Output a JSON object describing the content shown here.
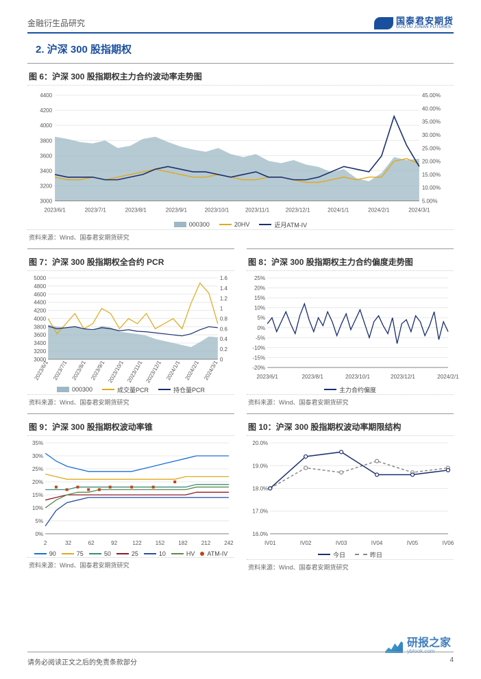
{
  "header": {
    "category": "金融衍生品研究",
    "logo_cn": "国泰君安期货",
    "logo_en": "GUOTAI JUNAN FUTURES"
  },
  "section": {
    "number": "2.",
    "title": "沪深 300 股指期权"
  },
  "colors": {
    "brand": "#1a4f9e",
    "area_fill": "#9db8c4",
    "line_yellow": "#e0a81a",
    "line_navy": "#1a2f6e",
    "line_blue_90": "#1a6fd8",
    "line_blue_75": "#e0a81a",
    "line_blue_50": "#3a8a7a",
    "line_blue_25": "#8a1a2a",
    "line_blue_10": "#2a4f9e",
    "line_hv": "#5a8a4a",
    "line_atmiv": "#b84a1a",
    "grid": "#e8e8e8",
    "axis": "#888888",
    "bg": "#ffffff"
  },
  "fig6": {
    "title": "图 6：沪深 300 股指期权主力合约波动率走势图",
    "x_labels": [
      "2023/6/1",
      "2023/7/1",
      "2023/8/1",
      "2023/9/1",
      "2023/10/1",
      "2023/11/1",
      "2023/12/1",
      "2024/1/1",
      "2024/2/1",
      "2024/3/1"
    ],
    "y_left_ticks": [
      3000,
      3200,
      3400,
      3600,
      3800,
      4000,
      4200,
      4400
    ],
    "y_right_ticks": [
      "5.00%",
      "10.00%",
      "15.00%",
      "20.00%",
      "25.00%",
      "30.00%",
      "35.00%",
      "40.00%",
      "45.00%"
    ],
    "area_000300": [
      3850,
      3820,
      3780,
      3760,
      3800,
      3700,
      3730,
      3820,
      3850,
      3780,
      3720,
      3680,
      3650,
      3700,
      3620,
      3580,
      3620,
      3530,
      3500,
      3540,
      3480,
      3450,
      3380,
      3420,
      3300,
      3260,
      3370,
      3580,
      3540,
      3560
    ],
    "line_20hv": [
      14,
      13,
      13,
      14,
      13,
      14,
      15,
      16,
      17,
      16,
      15,
      14,
      14,
      15,
      14,
      13,
      13,
      14,
      14,
      13,
      12,
      12,
      13,
      14,
      13,
      14,
      14,
      20,
      21,
      19
    ],
    "line_atmiv": [
      15,
      14,
      14,
      14,
      13,
      13,
      14,
      15,
      17,
      18,
      17,
      16,
      16,
      15,
      14,
      15,
      16,
      14,
      14,
      13,
      13,
      14,
      16,
      18,
      17,
      16,
      22,
      37,
      26,
      18
    ],
    "legend": [
      {
        "type": "area",
        "color": "#9db8c4",
        "label": "000300"
      },
      {
        "type": "line",
        "color": "#e0a81a",
        "label": "20HV"
      },
      {
        "type": "line",
        "color": "#1a2f6e",
        "label": "近月ATM-IV"
      }
    ],
    "source": "资料来源：Wind、国泰君安期货研究"
  },
  "fig7": {
    "title": "图 7：沪深 300 股指期权全合约 PCR",
    "x_labels": [
      "2023/6/1",
      "2023/7/1",
      "2023/8/1",
      "2023/9/1",
      "2023/10/1",
      "2023/11/1",
      "2023/12/1",
      "2024/1/1",
      "2024/2/1",
      "2024/3/1"
    ],
    "y_left_ticks": [
      3000,
      3200,
      3400,
      3600,
      3800,
      4000,
      4200,
      4400,
      4600,
      4800,
      5000
    ],
    "y_right_ticks": [
      0,
      0.2,
      0.4,
      0.6,
      0.8,
      1,
      1.2,
      1.4,
      1.6
    ],
    "area_000300": [
      3850,
      3800,
      3780,
      3820,
      3760,
      3700,
      3820,
      3780,
      3680,
      3650,
      3620,
      3580,
      3500,
      3450,
      3400,
      3350,
      3300,
      3420,
      3560,
      3540
    ],
    "line_vol_pcr": [
      0.8,
      0.5,
      0.7,
      0.9,
      0.6,
      0.7,
      1.0,
      0.9,
      0.6,
      0.8,
      0.7,
      0.9,
      0.6,
      0.7,
      0.8,
      0.6,
      1.1,
      1.5,
      1.3,
      0.7
    ],
    "line_oi_pcr": [
      0.65,
      0.6,
      0.62,
      0.64,
      0.6,
      0.58,
      0.62,
      0.6,
      0.56,
      0.58,
      0.55,
      0.54,
      0.52,
      0.5,
      0.48,
      0.46,
      0.5,
      0.58,
      0.64,
      0.62
    ],
    "legend": [
      {
        "type": "area",
        "color": "#9db8c4",
        "label": "000300"
      },
      {
        "type": "line",
        "color": "#e0a81a",
        "label": "成交量PCR"
      },
      {
        "type": "line",
        "color": "#1a2f6e",
        "label": "持仓量PCR"
      }
    ],
    "source": "资料来源：Wind、国泰君安期货研究"
  },
  "fig8": {
    "title": "图 8：沪深 300 股指期权主力合约偏度走势图",
    "x_labels": [
      "2023/6/1",
      "2023/8/1",
      "2023/10/1",
      "2023/12/1",
      "2024/2/1"
    ],
    "y_ticks": [
      "-20%",
      "-15%",
      "-10%",
      "-5%",
      "0%",
      "5%",
      "10%",
      "15%",
      "20%",
      "25%"
    ],
    "line_skew": [
      2,
      5,
      -2,
      3,
      8,
      2,
      -3,
      6,
      12,
      4,
      -2,
      5,
      1,
      8,
      3,
      -4,
      2,
      7,
      -1,
      4,
      9,
      2,
      -5,
      3,
      6,
      1,
      -3,
      5,
      -8,
      2,
      4,
      -2,
      6,
      3,
      -4,
      1,
      8,
      -6,
      3,
      -2
    ],
    "legend": [
      {
        "type": "line",
        "color": "#1a2f6e",
        "label": "主力合约偏度"
      }
    ],
    "source": "资料来源：Wind、国泰君安期货研究"
  },
  "fig9": {
    "title": "图 9：沪深 300 股指期权波动率锥",
    "x_labels": [
      "2",
      "32",
      "62",
      "92",
      "122",
      "152",
      "182",
      "212",
      "242"
    ],
    "y_ticks": [
      "0%",
      "5%",
      "10%",
      "15%",
      "20%",
      "25%",
      "30%",
      "35%"
    ],
    "lines": {
      "p90": {
        "color": "#1a6fd8",
        "data": [
          31,
          28,
          26,
          25,
          24,
          24,
          24,
          24,
          24,
          25,
          26,
          27,
          28,
          29,
          30,
          30,
          30,
          30
        ]
      },
      "p75": {
        "color": "#e0a81a",
        "data": [
          23,
          22,
          21,
          21,
          21,
          21,
          21,
          21,
          21,
          21,
          21,
          21,
          21,
          22,
          22,
          22,
          22,
          22
        ]
      },
      "p50": {
        "color": "#3a8a7a",
        "data": [
          17,
          17,
          17,
          18,
          18,
          18,
          18,
          18,
          18,
          18,
          18,
          18,
          18,
          18,
          19,
          19,
          19,
          19
        ]
      },
      "p25": {
        "color": "#8a1a2a",
        "data": [
          13,
          14,
          15,
          15,
          15,
          15,
          15,
          15,
          15,
          15,
          15,
          15,
          15,
          15,
          16,
          16,
          16,
          16
        ]
      },
      "p10": {
        "color": "#2a4f9e",
        "data": [
          3,
          9,
          12,
          13,
          14,
          14,
          14,
          14,
          14,
          14,
          14,
          14,
          14,
          14,
          14,
          14,
          14,
          14
        ]
      },
      "HV": {
        "color": "#5a8a4a",
        "data": [
          10,
          13,
          15,
          16,
          16,
          17,
          17,
          17,
          17,
          17,
          17,
          17,
          17,
          17,
          18,
          18,
          18,
          18
        ]
      }
    },
    "atm_iv_markers": {
      "color": "#b84a1a",
      "x": [
        1,
        2,
        3,
        4,
        5,
        6,
        8,
        10,
        12
      ],
      "y": [
        18,
        17,
        18,
        17,
        17,
        18,
        18,
        18,
        20
      ]
    },
    "legend": [
      {
        "type": "line",
        "color": "#1a6fd8",
        "label": "90"
      },
      {
        "type": "line",
        "color": "#e0a81a",
        "label": "75"
      },
      {
        "type": "line",
        "color": "#3a8a7a",
        "label": "50"
      },
      {
        "type": "line",
        "color": "#8a1a2a",
        "label": "25"
      },
      {
        "type": "line",
        "color": "#2a4f9e",
        "label": "10"
      },
      {
        "type": "line",
        "color": "#5a8a4a",
        "label": "HV"
      },
      {
        "type": "dot",
        "color": "#b84a1a",
        "label": "ATM-IV"
      }
    ],
    "source": "资料来源：Wind、国泰君安期货研究"
  },
  "fig10": {
    "title": "图 10：沪深 300 股指期权波动率期限结构",
    "x_labels": [
      "IV01",
      "IV02",
      "IV03",
      "IV04",
      "IV05",
      "IV06"
    ],
    "y_ticks": [
      "16.0%",
      "17.0%",
      "18.0%",
      "19.0%",
      "20.0%"
    ],
    "line_today": {
      "color": "#1a2f6e",
      "dash": "",
      "data": [
        18.0,
        19.4,
        19.6,
        18.6,
        18.6,
        18.8
      ]
    },
    "line_yesterday": {
      "color": "#888888",
      "dash": "4,3",
      "data": [
        18.0,
        18.9,
        18.7,
        19.2,
        18.7,
        18.9
      ]
    },
    "legend": [
      {
        "type": "line",
        "color": "#1a2f6e",
        "label": "今日"
      },
      {
        "type": "line",
        "color": "#888888",
        "dash": "4,3",
        "label": "昨日"
      }
    ],
    "source": "资料来源：Wind、国泰君安期货研究"
  },
  "footer": {
    "disclaimer": "请务必阅读正文之后的免责条款部分",
    "page": "4"
  },
  "watermark": {
    "text": "研报之家",
    "sub": "yblook.com"
  }
}
